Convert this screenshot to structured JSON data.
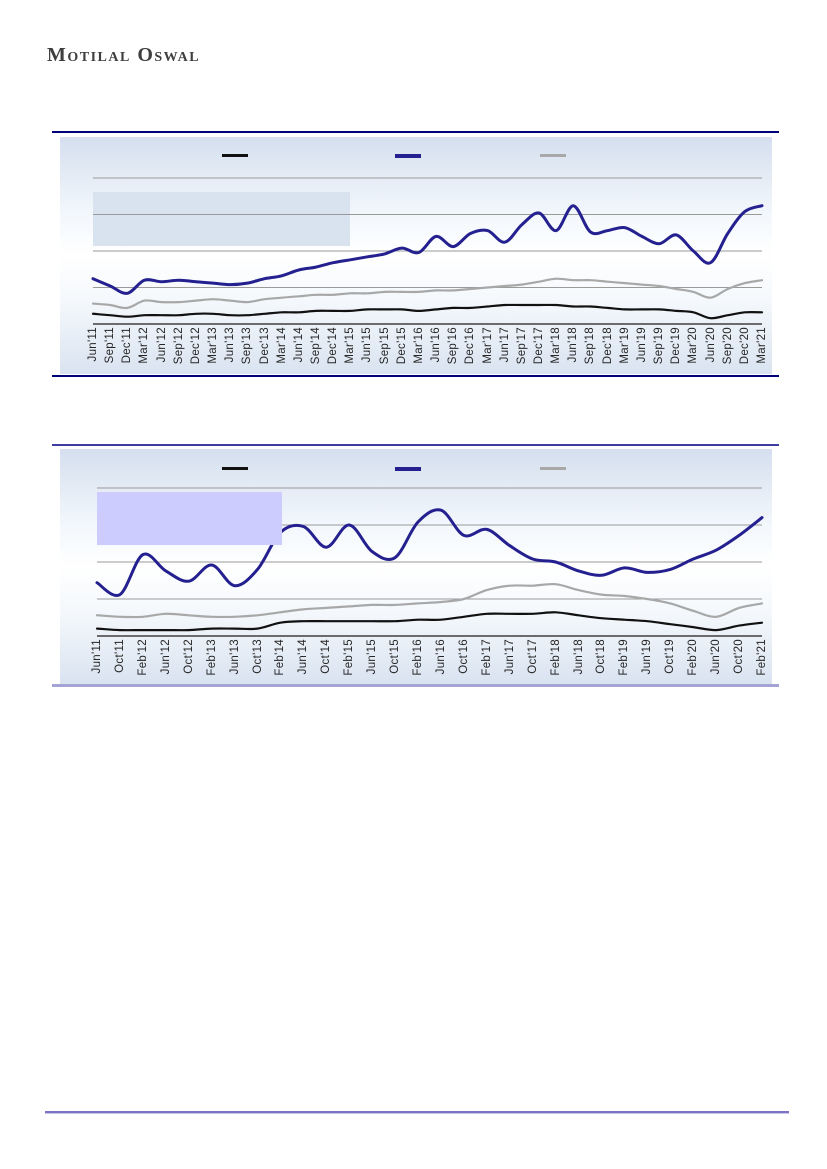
{
  "logo": {
    "text": "Motilal Oswal"
  },
  "footer": {
    "divider_color": "#7b74c4"
  },
  "chart_data": [
    {
      "type": "line",
      "title": "",
      "legend_position": "top",
      "legend_labels": [
        "",
        "",
        ""
      ],
      "grid": true,
      "y_axis_visible": false,
      "ylim": [
        0,
        100
      ],
      "values_note": "y-axis has no visible tick labels; series values estimated as percent of plot height",
      "highlight_box": {
        "label": "",
        "color": "#d9e3f0"
      },
      "categories": [
        "Jun'11",
        "Sep'11",
        "Dec'11",
        "Mar'12",
        "Jun'12",
        "Sep'12",
        "Dec'12",
        "Mar'13",
        "Jun'13",
        "Sep'13",
        "Dec'13",
        "Mar'14",
        "Jun'14",
        "Sep'14",
        "Dec'14",
        "Mar'15",
        "Jun'15",
        "Sep'15",
        "Dec'15",
        "Mar'16",
        "Jun'16",
        "Sep'16",
        "Dec'16",
        "Mar'17",
        "Jun'17",
        "Sep'17",
        "Dec'17",
        "Mar'18",
        "Jun'18",
        "Sep'18",
        "Dec'18",
        "Mar'19",
        "Jun'19",
        "Sep'19",
        "Dec'19",
        "Mar'20",
        "Jun'20",
        "Sep'20",
        "Dec'20",
        "Mar'21"
      ],
      "series": [
        {
          "name": "",
          "color": "#111111",
          "values": [
            7,
            6,
            5,
            6,
            6,
            6,
            7,
            7,
            6,
            6,
            7,
            8,
            8,
            9,
            9,
            9,
            10,
            10,
            10,
            9,
            10,
            11,
            11,
            12,
            13,
            13,
            13,
            13,
            12,
            12,
            11,
            10,
            10,
            10,
            9,
            8,
            4,
            6,
            8,
            8
          ]
        },
        {
          "name": "",
          "color": "#24208f",
          "values": [
            31,
            26,
            21,
            30,
            29,
            30,
            29,
            28,
            27,
            28,
            31,
            33,
            37,
            39,
            42,
            44,
            46,
            48,
            52,
            49,
            60,
            53,
            62,
            64,
            56,
            68,
            76,
            64,
            81,
            63,
            64,
            66,
            60,
            55,
            61,
            50,
            42,
            62,
            77,
            81
          ]
        },
        {
          "name": "",
          "color": "#a8a8a8",
          "values": [
            14,
            13,
            11,
            16,
            15,
            15,
            16,
            17,
            16,
            15,
            17,
            18,
            19,
            20,
            20,
            21,
            21,
            22,
            22,
            22,
            23,
            23,
            24,
            25,
            26,
            27,
            29,
            31,
            30,
            30,
            29,
            28,
            27,
            26,
            24,
            22,
            18,
            24,
            28,
            30
          ]
        }
      ]
    },
    {
      "type": "line",
      "title": "",
      "legend_position": "top",
      "legend_labels": [
        "",
        "",
        ""
      ],
      "grid": true,
      "y_axis_visible": false,
      "ylim": [
        0,
        100
      ],
      "values_note": "y-axis has no visible tick labels; series values estimated as percent of plot height",
      "highlight_box": {
        "label": "",
        "color": "#ccccff"
      },
      "categories": [
        "Jun'11",
        "Oct'11",
        "Feb'12",
        "Jun'12",
        "Oct'12",
        "Feb'13",
        "Jun'13",
        "Oct'13",
        "Feb'14",
        "Jun'14",
        "Oct'14",
        "Feb'15",
        "Jun'15",
        "Oct'15",
        "Feb'16",
        "Jun'16",
        "Oct'16",
        "Feb'17",
        "Jun'17",
        "Oct'17",
        "Feb'18",
        "Jun'18",
        "Oct'18",
        "Feb'19",
        "Jun'19",
        "Oct'19",
        "Feb'20",
        "Jun'20",
        "Oct'20",
        "Feb'21"
      ],
      "series": [
        {
          "name": "",
          "color": "#111111",
          "values": [
            5,
            4,
            4,
            4,
            4,
            5,
            5,
            5,
            9,
            10,
            10,
            10,
            10,
            10,
            11,
            11,
            13,
            15,
            15,
            15,
            16,
            14,
            12,
            11,
            10,
            8,
            6,
            4,
            7,
            9
          ]
        },
        {
          "name": "",
          "color": "#24208f",
          "values": [
            36,
            28,
            55,
            44,
            37,
            48,
            34,
            45,
            70,
            74,
            60,
            75,
            57,
            53,
            77,
            85,
            68,
            72,
            61,
            52,
            50,
            44,
            41,
            46,
            43,
            45,
            52,
            58,
            68,
            80
          ]
        },
        {
          "name": "",
          "color": "#a8a8a8",
          "values": [
            14,
            13,
            13,
            15,
            14,
            13,
            13,
            14,
            16,
            18,
            19,
            20,
            21,
            21,
            22,
            23,
            25,
            31,
            34,
            34,
            35,
            31,
            28,
            27,
            25,
            22,
            17,
            13,
            19,
            22
          ]
        }
      ]
    }
  ]
}
